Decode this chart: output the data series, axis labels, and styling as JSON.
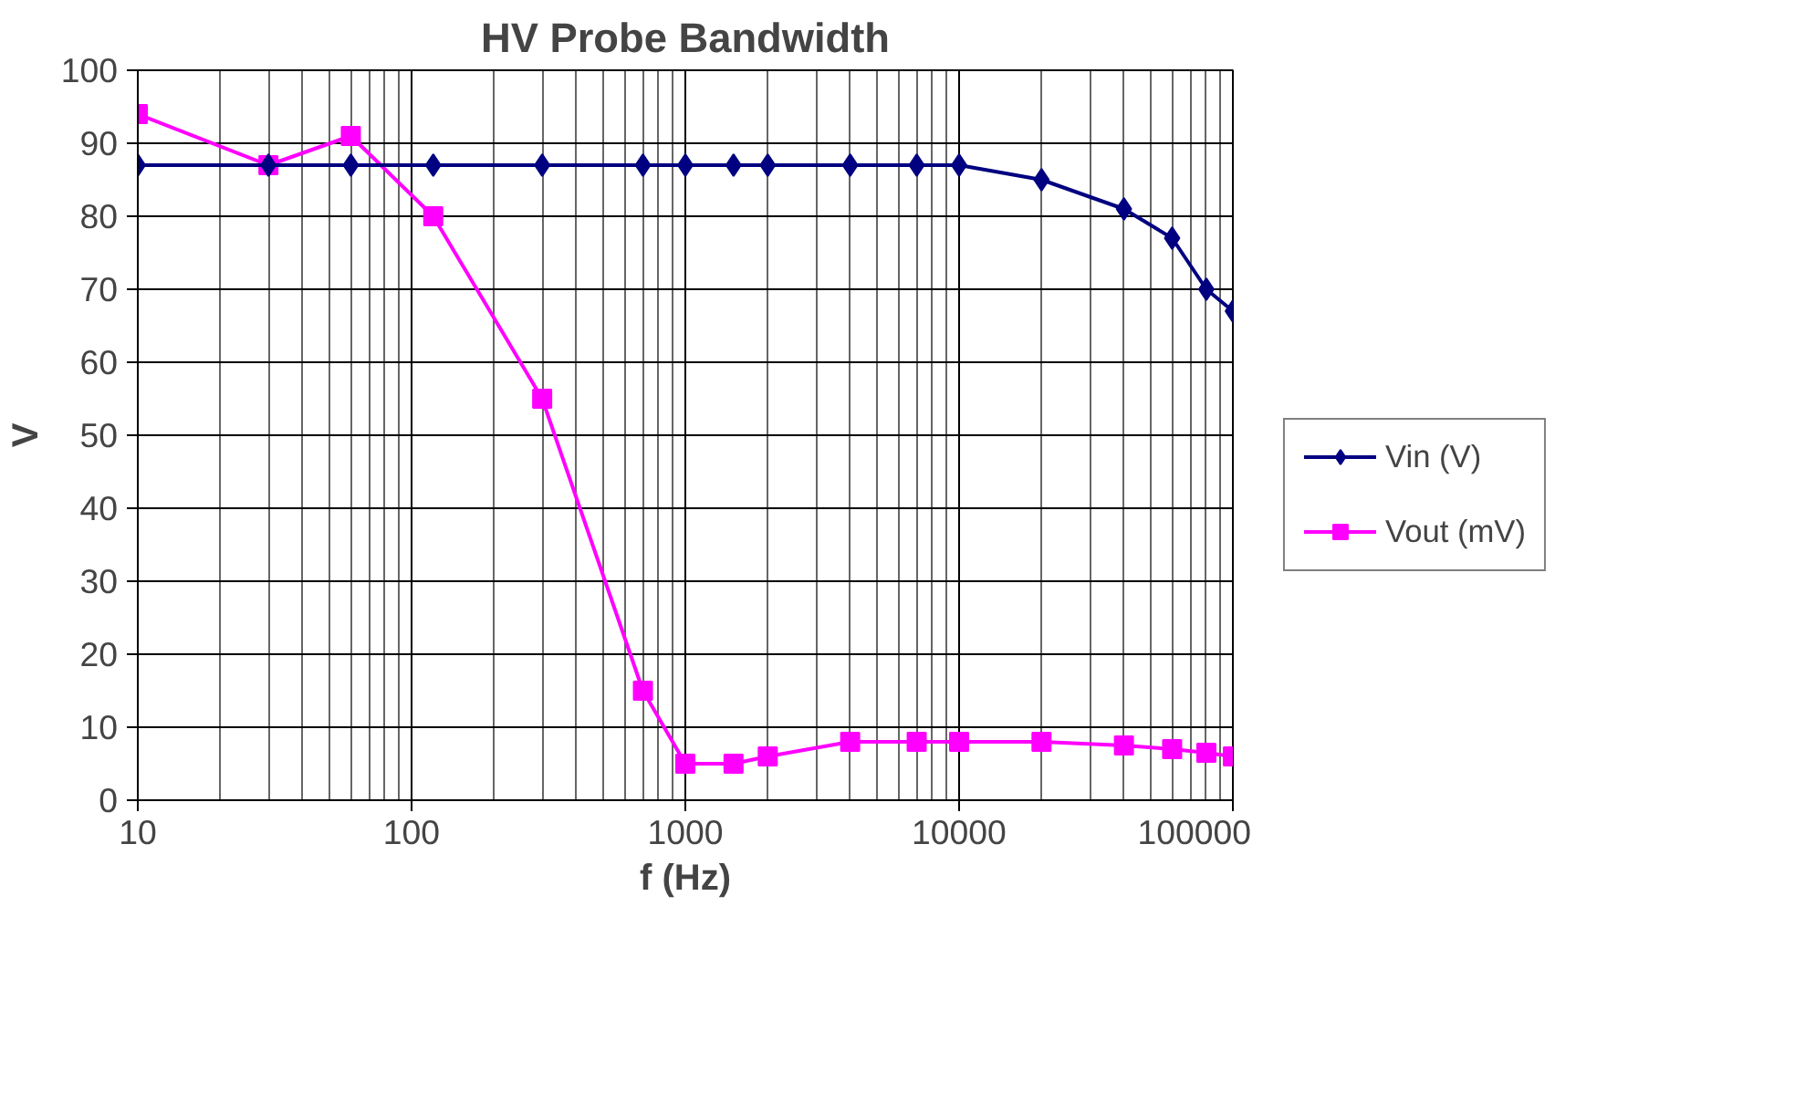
{
  "chart_data": {
    "type": "line",
    "title": "HV Probe Bandwidth",
    "xlabel": "f (Hz)",
    "ylabel": "V",
    "x": [
      10,
      30,
      60,
      120,
      300,
      700,
      1000,
      1500,
      2000,
      4000,
      7000,
      10000,
      20000,
      40000,
      60000,
      80000,
      100000
    ],
    "series": [
      {
        "name": "Vin (V)",
        "color": "#000080",
        "marker": "diamond",
        "values": [
          87,
          87,
          87,
          87,
          87,
          87,
          87,
          87,
          87,
          87,
          87,
          87,
          85,
          81,
          77,
          70,
          67
        ]
      },
      {
        "name": "Vout (mV)",
        "color": "#ff00ff",
        "marker": "square",
        "values": [
          94,
          87,
          91,
          80,
          55,
          15,
          5,
          5,
          6,
          8,
          8,
          8,
          8,
          7.5,
          7,
          6.5,
          6
        ]
      }
    ],
    "log": "x",
    "xlim": [
      10,
      100000
    ],
    "xticks": [
      10,
      100,
      1000,
      10000,
      100000
    ],
    "ylim": [
      0,
      100
    ],
    "yticks": [
      0,
      10,
      20,
      30,
      40,
      50,
      60,
      70,
      80,
      90,
      100
    ],
    "grid": true,
    "legend": "right"
  }
}
